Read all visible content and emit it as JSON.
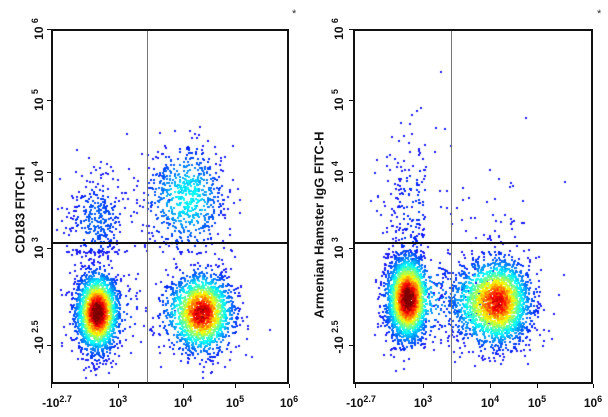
{
  "chart_data": [
    {
      "type": "scatter",
      "subtype": "flow-cytometry-density",
      "ylabel": "CD183 FITC-H",
      "xlabel": "",
      "marker": "*",
      "x_ticks": [
        {
          "v": -2.7,
          "label": "-10",
          "exp": "2.7"
        },
        {
          "v": 3,
          "label": "10",
          "exp": "3"
        },
        {
          "v": 4,
          "label": "10",
          "exp": "4"
        },
        {
          "v": 5,
          "label": "10",
          "exp": "5"
        },
        {
          "v": 6,
          "label": "10",
          "exp": "6"
        }
      ],
      "y_ticks": [
        {
          "v": -2.5,
          "label": "-10",
          "exp": "2.5"
        },
        {
          "v": 3,
          "label": "10",
          "exp": "3"
        },
        {
          "v": 4,
          "label": "10",
          "exp": "4"
        },
        {
          "v": 5,
          "label": "10",
          "exp": "5"
        },
        {
          "v": 6,
          "label": "10",
          "exp": "6"
        }
      ],
      "gate": {
        "x": 3.42,
        "y": 3.1
      },
      "populations": [
        {
          "x": 1.0,
          "y": -0.5,
          "sx": 0.9,
          "sy": 1.1,
          "n": 2600,
          "peak": 1.0
        },
        {
          "x": 4.3,
          "y": -0.5,
          "sx": 0.3,
          "sy": 1.1,
          "n": 2000,
          "peak": 0.9
        },
        {
          "x": 4.05,
          "y": 3.7,
          "sx": 0.35,
          "sy": 0.35,
          "n": 700,
          "peak": 0.3
        },
        {
          "x": 1.0,
          "y": 3.4,
          "sx": 1.3,
          "sy": 0.3,
          "n": 350,
          "peak": 0.12
        }
      ]
    },
    {
      "type": "scatter",
      "subtype": "flow-cytometry-density",
      "ylabel": "Armenian Hamster IgG FITC-H",
      "xlabel": "",
      "marker": "*",
      "x_ticks": [
        {
          "v": -2.7,
          "label": "-10",
          "exp": "2.7"
        },
        {
          "v": 3,
          "label": "10",
          "exp": "3"
        },
        {
          "v": 4,
          "label": "10",
          "exp": "4"
        },
        {
          "v": 5,
          "label": "10",
          "exp": "5"
        },
        {
          "v": 6,
          "label": "10",
          "exp": "6"
        }
      ],
      "y_ticks": [
        {
          "v": -2.5,
          "label": "-10",
          "exp": "2.5"
        },
        {
          "v": 3,
          "label": "10",
          "exp": "3"
        },
        {
          "v": 4,
          "label": "10",
          "exp": "4"
        },
        {
          "v": 5,
          "label": "10",
          "exp": "5"
        },
        {
          "v": 6,
          "label": "10",
          "exp": "6"
        }
      ],
      "gate": {
        "x": 3.39,
        "y": 3.1
      },
      "populations": [
        {
          "x": 1.5,
          "y": 0.3,
          "sx": 0.9,
          "sy": 1.2,
          "n": 3000,
          "peak": 1.0
        },
        {
          "x": 4.1,
          "y": 0.1,
          "sx": 0.35,
          "sy": 1.2,
          "n": 2600,
          "peak": 0.85
        },
        {
          "x": 2.0,
          "y": 3.6,
          "sx": 1.4,
          "sy": 0.5,
          "n": 200,
          "peak": 0.06
        }
      ]
    }
  ]
}
